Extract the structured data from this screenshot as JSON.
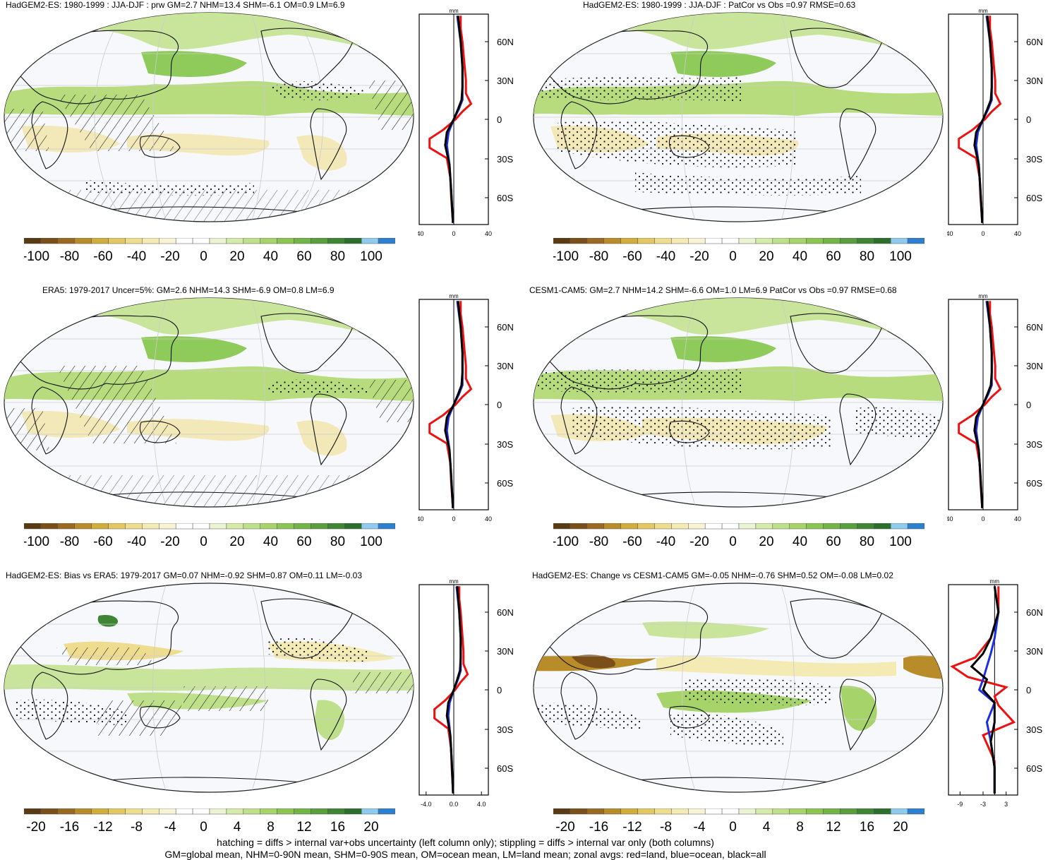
{
  "panels": [
    {
      "id": "p1",
      "title": "HadGEM2-ES: 1980-1999 : JJA-DJF : prw GM=2.7 NHM=13.4 SHM=-6.1 OM=0.9 LM=6.9",
      "title_align": "left",
      "units": "mm",
      "zonal_ticks": [
        "-40",
        "0",
        "40"
      ],
      "zonal_range": [
        -40,
        40
      ],
      "colorbar_labels": [
        "-100",
        "-80",
        "-60",
        "-40",
        "-20",
        "0",
        "20",
        "40",
        "60",
        "80",
        "100"
      ],
      "hatching": true
    },
    {
      "id": "p2",
      "title": "HadGEM2-ES: 1980-1999 : JJA-DJF : PatCor vs Obs =0.97 RMSE=0.63",
      "title_align": "center",
      "units": "mm",
      "zonal_ticks": [
        "-40",
        "0",
        "40"
      ],
      "zonal_range": [
        -40,
        40
      ],
      "colorbar_labels": [
        "-100",
        "-80",
        "-60",
        "-40",
        "-20",
        "0",
        "20",
        "40",
        "60",
        "80",
        "100"
      ],
      "hatching": false
    },
    {
      "id": "p3",
      "title": "ERA5: 1979-2017 Uncer=5%: GM=2.6 NHM=14.3 SHM=-6.9 OM=0.8 LM=6.9",
      "title_align": "center",
      "units": "mm",
      "zonal_ticks": [
        "-40",
        "0",
        "40"
      ],
      "zonal_range": [
        -40,
        40
      ],
      "colorbar_labels": [
        "-100",
        "-80",
        "-60",
        "-40",
        "-20",
        "0",
        "20",
        "40",
        "60",
        "80",
        "100"
      ],
      "hatching": true
    },
    {
      "id": "p4",
      "title": "CESM1-CAM5: GM=2.7 NHM=14.2 SHM=-6.6 OM=1.0 LM=6.9 PatCor vs Obs =0.97 RMSE=0.68",
      "title_align": "left",
      "units": "mm",
      "zonal_ticks": [
        "-40",
        "0",
        "40"
      ],
      "zonal_range": [
        -40,
        40
      ],
      "colorbar_labels": [
        "-100",
        "-80",
        "-60",
        "-40",
        "-20",
        "0",
        "20",
        "40",
        "60",
        "80",
        "100"
      ],
      "hatching": false
    },
    {
      "id": "p5",
      "title": "HadGEM2-ES: Bias vs ERA5: 1979-2017 GM=0.07 NHM=-0.92 SHM=0.87 OM=0.11 LM=-0.03",
      "title_align": "left",
      "units": "mm",
      "zonal_ticks": [
        "-4.0",
        "0.0",
        "4.0"
      ],
      "zonal_range": [
        -5,
        5
      ],
      "colorbar_labels": [
        "-20",
        "-16",
        "-12",
        "-8",
        "-4",
        "0",
        "4",
        "8",
        "12",
        "16",
        "20"
      ],
      "hatching": true
    },
    {
      "id": "p6",
      "title": "HadGEM2-ES: Change vs CESM1-CAM5 GM=-0.05 NHM=-0.76 SHM=0.52 OM=-0.08 LM=0.02",
      "title_align": "left",
      "units": "mm",
      "zonal_ticks": [
        "-9",
        "-3",
        "3"
      ],
      "zonal_range": [
        -12,
        6
      ],
      "colorbar_labels": [
        "-20",
        "-16",
        "-12",
        "-8",
        "-4",
        "0",
        "4",
        "8",
        "12",
        "16",
        "20"
      ],
      "hatching": false
    }
  ],
  "lat_labels": [
    "60N",
    "30N",
    "0",
    "30S",
    "60S"
  ],
  "colorbar_colors": [
    "#5a3a12",
    "#7a4f1a",
    "#9a6a22",
    "#b98c2a",
    "#d1ad3c",
    "#e3c861",
    "#eedc8f",
    "#f4eab4",
    "#f9f3d6",
    "#ffffff",
    "#ffffff",
    "#eaf4d3",
    "#d5ebaa",
    "#bfe08a",
    "#a6d36a",
    "#8cc552",
    "#73b447",
    "#599f3d",
    "#3f8634",
    "#2c6f2d",
    "#8fcbee",
    "#2d7fcf"
  ],
  "zonal_line_colors": {
    "land": "#ee1111",
    "ocean": "#1c2fe0",
    "all": "#000000"
  },
  "footer": {
    "line1": "hatching = diffs > internal var+obs uncertainty (left column only); stippling = diffs > internal var only (both columns)",
    "line2": "GM=global mean, NHM=0-90N mean, SHM=0-90S mean, OM=ocean mean, LM=land mean; zonal avgs: red=land, blue=ocean, black=all"
  }
}
